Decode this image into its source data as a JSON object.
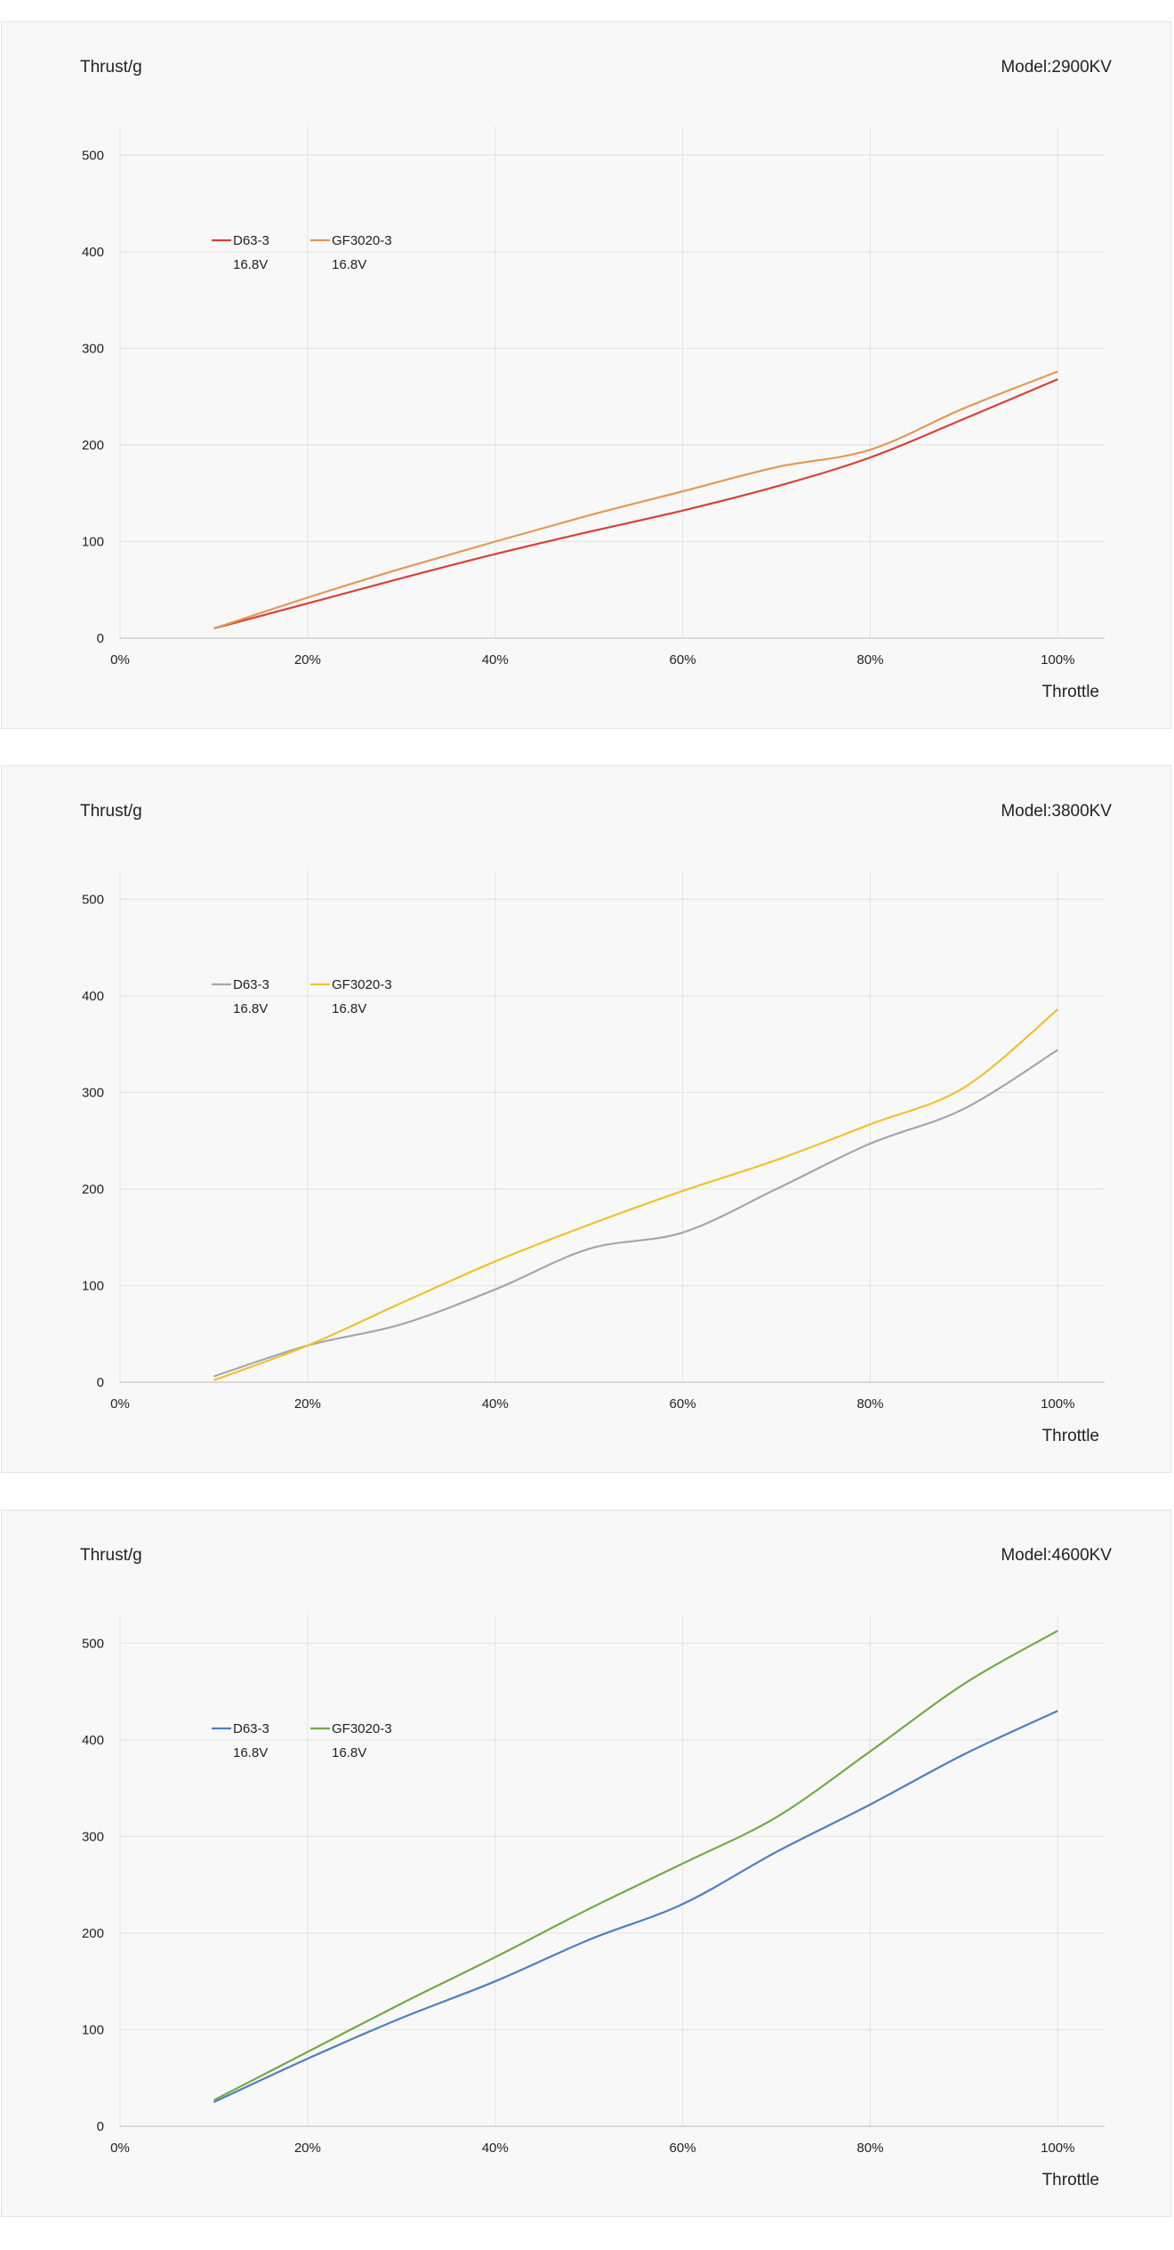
{
  "charts": [
    {
      "ylabel": "Thrust/g",
      "model": "Model:2900KV",
      "xlabel": "Throttle"
    },
    {
      "ylabel": "Thrust/g",
      "model": "Model:3800KV",
      "xlabel": "Throttle"
    },
    {
      "ylabel": "Thrust/g",
      "model": "Model:4600KV",
      "xlabel": "Throttle"
    }
  ],
  "chart_data": [
    {
      "type": "line",
      "title": "Model:2900KV",
      "xlabel": "Throttle",
      "ylabel": "Thrust/g",
      "x": [
        10,
        20,
        30,
        40,
        50,
        60,
        70,
        80,
        90,
        100
      ],
      "x_ticks": [
        "0%",
        "20%",
        "40%",
        "60%",
        "80%",
        "100%"
      ],
      "x_tick_values": [
        0,
        20,
        40,
        60,
        80,
        100
      ],
      "xlim": [
        0,
        105
      ],
      "y_ticks": [
        "0",
        "100",
        "200",
        "300",
        "400",
        "500"
      ],
      "y_tick_values": [
        0,
        100,
        200,
        300,
        400,
        500
      ],
      "ylim": [
        0,
        550
      ],
      "grid": true,
      "legend_position": "top-left",
      "series": [
        {
          "name": "D63-3",
          "sub": "16.8V",
          "color": "#d9403a",
          "values": [
            10,
            36,
            62,
            87,
            110,
            132,
            157,
            187,
            227,
            268
          ]
        },
        {
          "name": "GF3020-3",
          "sub": "16.8V",
          "color": "#e39a54",
          "values": [
            10,
            42,
            72,
            100,
            127,
            152,
            177,
            195,
            238,
            276
          ]
        }
      ]
    },
    {
      "type": "line",
      "title": "Model:3800KV",
      "xlabel": "Throttle",
      "ylabel": "Thrust/g",
      "x": [
        10,
        20,
        30,
        40,
        50,
        60,
        70,
        80,
        90,
        100
      ],
      "x_ticks": [
        "0%",
        "20%",
        "40%",
        "60%",
        "80%",
        "100%"
      ],
      "x_tick_values": [
        0,
        20,
        40,
        60,
        80,
        100
      ],
      "xlim": [
        0,
        105
      ],
      "y_ticks": [
        "0",
        "100",
        "200",
        "300",
        "400",
        "500"
      ],
      "y_tick_values": [
        0,
        100,
        200,
        300,
        400,
        500
      ],
      "ylim": [
        0,
        550
      ],
      "grid": true,
      "legend_position": "top-left",
      "series": [
        {
          "name": "D63-3",
          "sub": "16.8V",
          "color": "#a7a7a7",
          "values": [
            6,
            38,
            60,
            96,
            138,
            155,
            200,
            247,
            283,
            344
          ]
        },
        {
          "name": "GF3020-3",
          "sub": "16.8V",
          "color": "#f2c12e",
          "values": [
            2,
            38,
            82,
            125,
            163,
            198,
            230,
            267,
            305,
            386
          ]
        }
      ]
    },
    {
      "type": "line",
      "title": "Model:4600KV",
      "xlabel": "Throttle",
      "ylabel": "Thrust/g",
      "x": [
        10,
        20,
        30,
        40,
        50,
        60,
        70,
        80,
        90,
        100
      ],
      "x_ticks": [
        "0%",
        "20%",
        "40%",
        "60%",
        "80%",
        "100%"
      ],
      "x_tick_values": [
        0,
        20,
        40,
        60,
        80,
        100
      ],
      "xlim": [
        0,
        105
      ],
      "y_ticks": [
        "0",
        "100",
        "200",
        "300",
        "400",
        "500"
      ],
      "y_tick_values": [
        0,
        100,
        200,
        300,
        400,
        500
      ],
      "ylim": [
        0,
        550
      ],
      "grid": true,
      "legend_position": "top-left",
      "series": [
        {
          "name": "D63-3",
          "sub": "16.8V",
          "color": "#4e7fbe",
          "values": [
            25,
            70,
            112,
            150,
            193,
            230,
            284,
            333,
            385,
            430
          ]
        },
        {
          "name": "GF3020-3",
          "sub": "16.8V",
          "color": "#74aa45",
          "values": [
            27,
            77,
            127,
            175,
            225,
            272,
            320,
            388,
            458,
            513
          ]
        }
      ]
    }
  ]
}
